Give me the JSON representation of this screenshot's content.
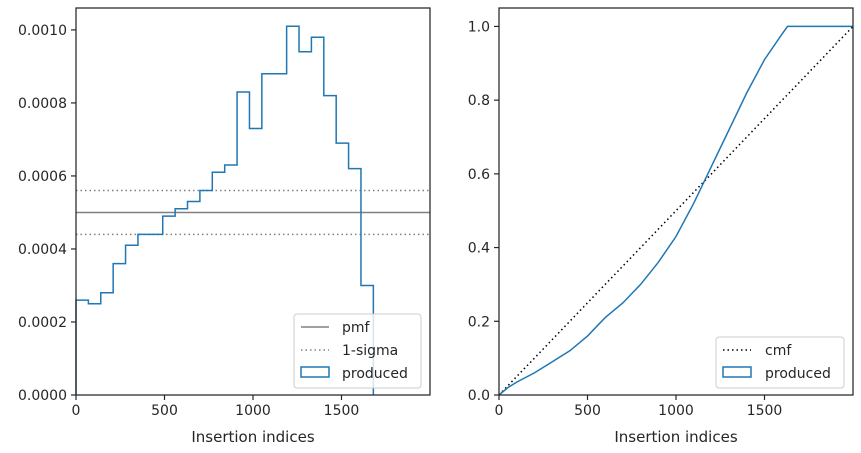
{
  "chart_data": [
    {
      "type": "histogram-step",
      "xlabel": "Insertion indices",
      "ylabel": "",
      "xlim": [
        0,
        2000
      ],
      "ylim": [
        0,
        0.00106
      ],
      "xticks": [
        0,
        500,
        1000,
        1500
      ],
      "yticks": [
        0,
        0.0002,
        0.0004,
        0.0006,
        0.0008,
        0.001
      ],
      "xtick_labels": [
        "0",
        "500",
        "1000",
        "1500"
      ],
      "ytick_labels": [
        "0.0000",
        "0.0002",
        "0.0004",
        "0.0006",
        "0.0008",
        "0.0010"
      ],
      "legend_position": "lower-right",
      "bin_edges": [
        0,
        70,
        140,
        210,
        280,
        350,
        420,
        490,
        560,
        630,
        700,
        770,
        840,
        910,
        980,
        1050,
        1120,
        1190,
        1260,
        1330,
        1400,
        1470,
        1540,
        1610,
        1680
      ],
      "series": [
        {
          "name": "pmf",
          "style": "solid",
          "color": "#808080",
          "y": 0.0005
        },
        {
          "name": "1-sigma",
          "style": "dotted",
          "color": "#808080",
          "y_values": [
            0.00056,
            0.00044
          ]
        },
        {
          "name": "produced",
          "style": "step",
          "color": "#1f77b4",
          "values": [
            0.00026,
            0.00025,
            0.00028,
            0.00036,
            0.00041,
            0.00044,
            0.00044,
            0.00049,
            0.00051,
            0.00053,
            0.00056,
            0.00061,
            0.00063,
            0.00083,
            0.00073,
            0.00088,
            0.00088,
            0.00101,
            0.00094,
            0.00098,
            0.00082,
            0.00069,
            0.00062,
            0.0003
          ]
        }
      ]
    },
    {
      "type": "line",
      "xlabel": "Insertion indices",
      "ylabel": "",
      "xlim": [
        0,
        2000
      ],
      "ylim": [
        0,
        1.05
      ],
      "xticks": [
        0,
        500,
        1000,
        1500
      ],
      "yticks": [
        0,
        0.2,
        0.4,
        0.6,
        0.8,
        1.0
      ],
      "xtick_labels": [
        "0",
        "500",
        "1000",
        "1500"
      ],
      "ytick_labels": [
        "0.0",
        "0.2",
        "0.4",
        "0.6",
        "0.8",
        "1.0"
      ],
      "legend_position": "lower-right",
      "series": [
        {
          "name": "cmf",
          "style": "dotted",
          "color": "#000000",
          "x": [
            0,
            2000
          ],
          "y": [
            0,
            1.0
          ]
        },
        {
          "name": "produced",
          "style": "solid",
          "color": "#1f77b4",
          "x": [
            0,
            50,
            100,
            200,
            300,
            400,
            500,
            600,
            700,
            800,
            900,
            1000,
            1100,
            1200,
            1300,
            1400,
            1500,
            1600,
            1630,
            2000
          ],
          "y": [
            0,
            0.02,
            0.035,
            0.06,
            0.09,
            0.12,
            0.16,
            0.21,
            0.25,
            0.3,
            0.36,
            0.43,
            0.52,
            0.62,
            0.72,
            0.82,
            0.91,
            0.98,
            1.0,
            1.0
          ]
        }
      ]
    }
  ]
}
